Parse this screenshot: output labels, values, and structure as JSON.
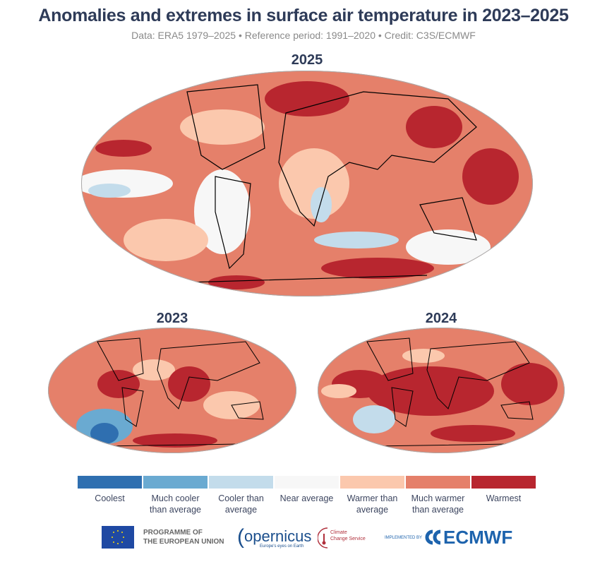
{
  "title": "Anomalies and extremes in surface air temperature in 2023–2025",
  "subtitle": "Data: ERA5 1979–2025 • Reference period: 1991–2020 • Credit: C3S/ECMWF",
  "maps": [
    {
      "year": "2025"
    },
    {
      "year": "2023"
    },
    {
      "year": "2024"
    }
  ],
  "legend": [
    {
      "label": "Coolest",
      "color": "#2f6fb0"
    },
    {
      "label": "Much cooler than average",
      "color": "#6aaad1"
    },
    {
      "label": "Cooler than average",
      "color": "#c3dceb"
    },
    {
      "label": "Near average",
      "color": "#f7f7f7"
    },
    {
      "label": "Warmer than average",
      "color": "#fbc8ad"
    },
    {
      "label": "Much warmer than average",
      "color": "#e5806a"
    },
    {
      "label": "Warmest",
      "color": "#b8262f"
    }
  ],
  "logos": {
    "eu_line1": "PROGRAMME OF",
    "eu_line2": "THE EUROPEAN UNION",
    "copernicus": "opernicus",
    "copernicus_tagline": "Europe's eyes on Earth",
    "c3s_line1": "Climate",
    "c3s_line2": "Change Service",
    "implemented_by": "IMPLEMENTED BY",
    "ecmwf": "ECMWF"
  }
}
